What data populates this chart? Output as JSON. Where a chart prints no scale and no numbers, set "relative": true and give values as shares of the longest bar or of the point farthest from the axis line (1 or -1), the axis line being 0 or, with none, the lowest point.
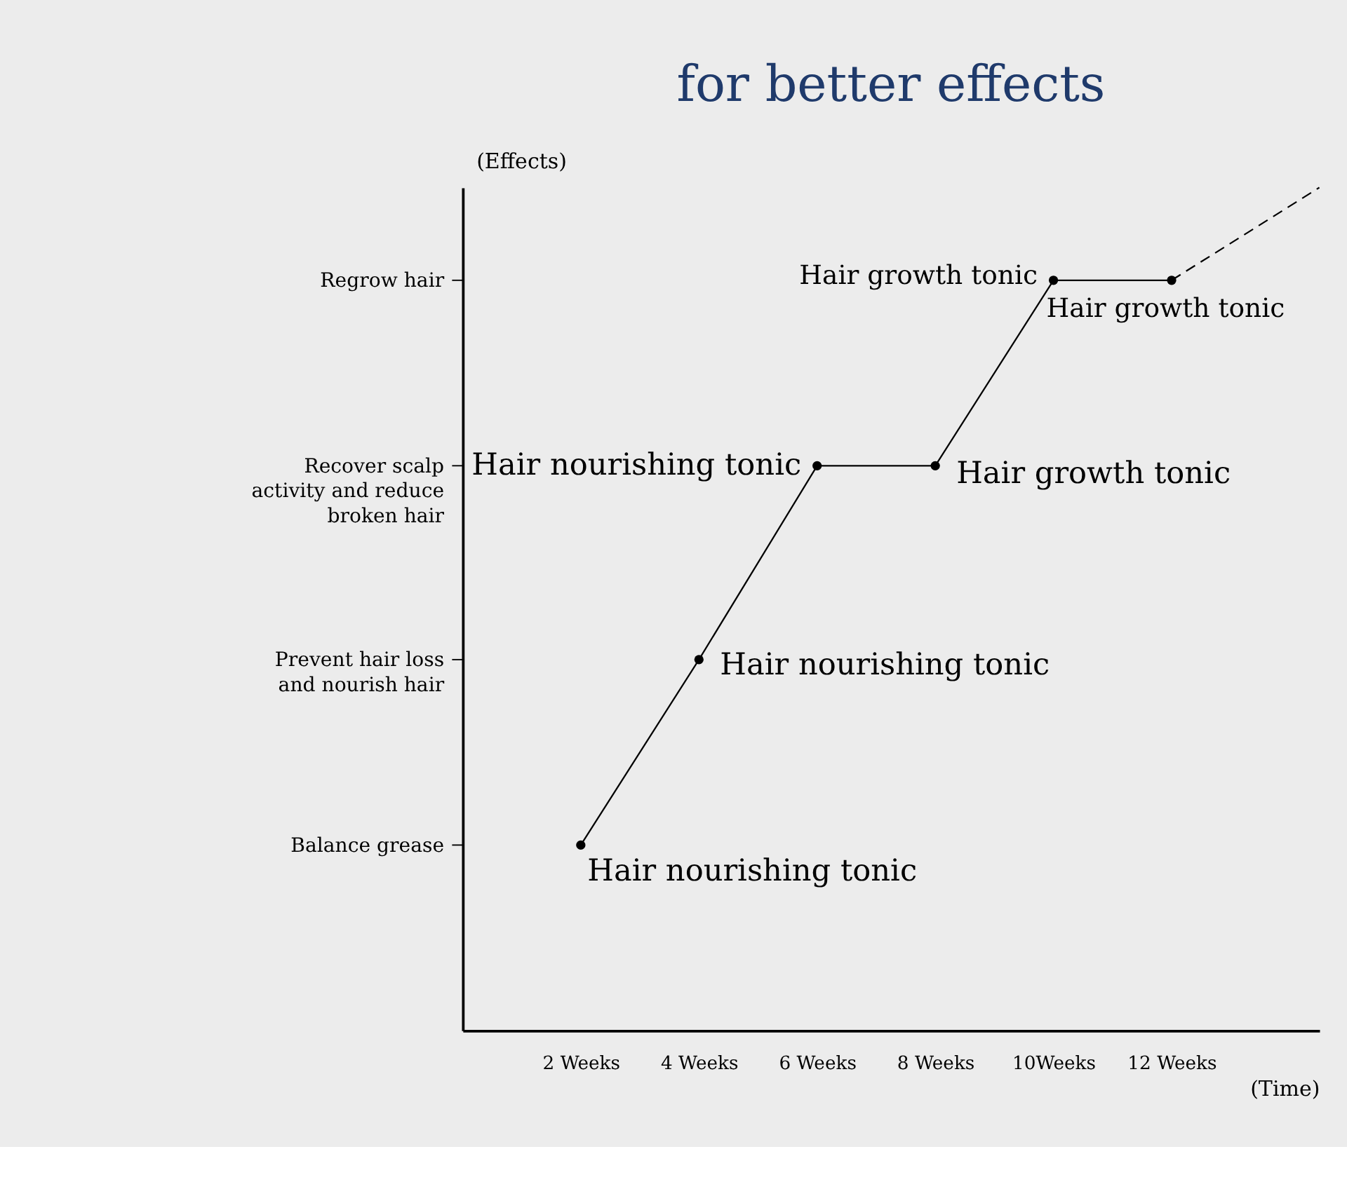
{
  "chart_data": {
    "type": "line",
    "title": "for better effects",
    "xlabel": "(Time)",
    "ylabel": "(Effects)",
    "relative": true,
    "xlim": [
      0,
      14.5
    ],
    "xticks": [
      {
        "value": 2,
        "label": "2 Weeks"
      },
      {
        "value": 4,
        "label": "4 Weeks"
      },
      {
        "value": 6,
        "label": "6 Weeks"
      },
      {
        "value": 8,
        "label": "8 Weeks"
      },
      {
        "value": 10,
        "label": "10Weeks"
      },
      {
        "value": 12,
        "label": "12 Weeks"
      }
    ],
    "series": [
      {
        "color": "#000000",
        "x": [
          2,
          4,
          6,
          8,
          10,
          12
        ],
        "values": [
          0.22,
          0.44,
          0.67,
          0.67,
          0.89,
          0.89
        ],
        "marker": "circle",
        "line_style": "solid"
      },
      {
        "color": "#000000",
        "x": [
          12,
          14.5
        ],
        "values": [
          0.89,
          1
        ],
        "marker": "none",
        "line_style": "dashed"
      }
    ],
    "annotations": [
      {
        "text": "Hair nourishing tonic",
        "x": 2,
        "y": 0.22
      },
      {
        "text": "Hair nourishing tonic",
        "x": 4,
        "y": 0.44
      },
      {
        "text": "Hair nourishing tonic",
        "x": 6,
        "y": 0.67
      },
      {
        "text": "Hair growth tonic",
        "x": 8,
        "y": 0.67
      },
      {
        "text": "Hair growth tonic",
        "x": 10,
        "y": 0.89
      },
      {
        "text": "Hair growth tonic",
        "x": 12,
        "y": 0.89
      },
      "Balance grease",
      "Prevent hair loss and nourish hair",
      "Recover scalp activity and reduce broken hair",
      "Regrow hair"
    ],
    "grid": false
  }
}
